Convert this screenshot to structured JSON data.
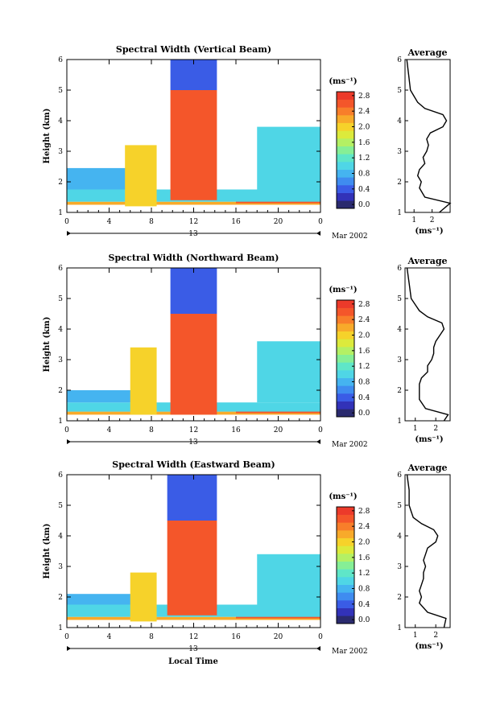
{
  "figure": {
    "xlabel": "Local Time",
    "date_label": "Mar 2002",
    "day_label": "13"
  },
  "colorbar": {
    "unit": "(ms⁻¹)",
    "ticks": [
      "0.0",
      "0.4",
      "0.8",
      "1.2",
      "1.6",
      "2.0",
      "2.4",
      "2.8"
    ],
    "range": [
      0.0,
      3.0
    ],
    "colors": [
      "#2a2a6e",
      "#3232b8",
      "#3a5ce6",
      "#3f8cf0",
      "#45b4f0",
      "#4fd6e6",
      "#5fe6c8",
      "#86ef96",
      "#b4f064",
      "#dcea3c",
      "#f6d22a",
      "#f8aa2a",
      "#f87e2a",
      "#f4562a",
      "#ec3a2a"
    ]
  },
  "panels": [
    {
      "title": "Spectral Width (Vertical Beam)",
      "ylabel": "Height (km)",
      "x_ticks": [
        "0",
        "4",
        "8",
        "12",
        "16",
        "20",
        "0"
      ],
      "y_ticks": [
        "1",
        "2",
        "3",
        "4",
        "5",
        "6"
      ],
      "avg_title": "Average",
      "avg_xlabel": "(ms⁻¹)",
      "avg_x_ticks": [
        "1",
        "2"
      ],
      "avg_xlim": [
        0.5,
        3.0
      ]
    },
    {
      "title": "Spectral Width (Northward Beam)",
      "ylabel": "Height (km)",
      "x_ticks": [
        "0",
        "4",
        "8",
        "12",
        "16",
        "20",
        "0"
      ],
      "y_ticks": [
        "1",
        "2",
        "3",
        "4",
        "5",
        "6"
      ],
      "avg_title": "Average",
      "avg_xlabel": "(ms⁻¹)",
      "avg_x_ticks": [
        "1",
        "2"
      ],
      "avg_xlim": [
        0.5,
        2.7
      ]
    },
    {
      "title": "Spectral Width (Eastward Beam)",
      "ylabel": "Height (km)",
      "x_ticks": [
        "0",
        "4",
        "8",
        "12",
        "16",
        "20",
        "0"
      ],
      "y_ticks": [
        "1",
        "2",
        "3",
        "4",
        "5",
        "6"
      ],
      "avg_title": "Average",
      "avg_xlabel": "(ms⁻¹)",
      "avg_x_ticks": [
        "1",
        "2"
      ],
      "avg_xlim": [
        0.5,
        2.7
      ]
    }
  ],
  "chart_data": [
    {
      "type": "heatmap",
      "title": "Spectral Width (Vertical Beam)",
      "xlabel": "",
      "ylabel": "Height (km)",
      "xlim": [
        0,
        24
      ],
      "ylim": [
        1,
        6
      ],
      "value_range": [
        0.0,
        3.0
      ],
      "regions": [
        {
          "time": [
            0,
            24
          ],
          "height": [
            1.25,
            1.35
          ],
          "value": 2.2
        },
        {
          "time": [
            16,
            24
          ],
          "height": [
            1.3,
            1.45
          ],
          "value": 2.6
        },
        {
          "time": [
            0,
            24
          ],
          "height": [
            1.35,
            1.75
          ],
          "value": 1.0
        },
        {
          "time": [
            0,
            8
          ],
          "height": [
            1.75,
            2.45
          ],
          "value": 0.8
        },
        {
          "time": [
            18,
            24
          ],
          "height": [
            1.75,
            3.8
          ],
          "value": 1.1
        },
        {
          "time": [
            5.5,
            8.5
          ],
          "height": [
            1.2,
            3.2
          ],
          "value": 2.0
        },
        {
          "time": [
            9.8,
            14.2
          ],
          "height": [
            1.4,
            5.0
          ],
          "value": 2.8
        },
        {
          "time": [
            9.8,
            14.2
          ],
          "height": [
            5.0,
            6.0
          ],
          "value": 0.6
        }
      ]
    },
    {
      "type": "line",
      "title": "Average",
      "xlabel": "(ms⁻¹)",
      "ylabel": "",
      "xlim": [
        0.5,
        3.0
      ],
      "ylim": [
        1,
        6
      ],
      "series": [
        {
          "width": [
            2.4,
            3.0,
            1.6,
            1.3,
            1.4,
            1.2,
            1.3,
            1.6,
            1.5,
            1.7,
            1.8,
            1.7,
            1.9,
            2.6,
            2.8,
            2.6,
            1.6,
            1.2,
            1.0,
            0.8,
            0.7,
            0.6
          ],
          "height": [
            1.0,
            1.3,
            1.5,
            1.8,
            2.0,
            2.2,
            2.4,
            2.6,
            2.8,
            3.0,
            3.2,
            3.4,
            3.6,
            3.8,
            4.0,
            4.2,
            4.4,
            4.6,
            4.8,
            5.0,
            5.5,
            6.0
          ]
        }
      ]
    },
    {
      "type": "heatmap",
      "title": "Spectral Width (Northward Beam)",
      "xlabel": "",
      "ylabel": "Height (km)",
      "xlim": [
        0,
        24
      ],
      "ylim": [
        1,
        6
      ],
      "value_range": [
        0.0,
        3.0
      ],
      "regions": [
        {
          "time": [
            0,
            24
          ],
          "height": [
            1.2,
            1.3
          ],
          "value": 2.2
        },
        {
          "time": [
            16,
            24
          ],
          "height": [
            1.25,
            1.45
          ],
          "value": 2.6
        },
        {
          "time": [
            0,
            24
          ],
          "height": [
            1.3,
            1.6
          ],
          "value": 1.0
        },
        {
          "time": [
            0,
            8
          ],
          "height": [
            1.6,
            2.0
          ],
          "value": 0.8
        },
        {
          "time": [
            18,
            24
          ],
          "height": [
            1.6,
            3.6
          ],
          "value": 1.1
        },
        {
          "time": [
            6,
            8.5
          ],
          "height": [
            1.2,
            3.4
          ],
          "value": 2.0
        },
        {
          "time": [
            9.8,
            14.2
          ],
          "height": [
            1.2,
            4.5
          ],
          "value": 2.8
        },
        {
          "time": [
            9.8,
            14.2
          ],
          "height": [
            4.5,
            6.0
          ],
          "value": 0.6
        }
      ]
    },
    {
      "type": "line",
      "title": "Average",
      "xlabel": "(ms⁻¹)",
      "ylabel": "",
      "xlim": [
        0.5,
        2.7
      ],
      "ylim": [
        1,
        6
      ],
      "series": [
        {
          "width": [
            2.4,
            2.6,
            1.5,
            1.2,
            1.2,
            1.2,
            1.3,
            1.6,
            1.6,
            1.8,
            1.9,
            1.9,
            2.0,
            2.2,
            2.4,
            2.3,
            1.6,
            1.2,
            1.0,
            0.8,
            0.7,
            0.6
          ],
          "height": [
            1.0,
            1.2,
            1.4,
            1.7,
            2.0,
            2.2,
            2.4,
            2.6,
            2.8,
            3.0,
            3.2,
            3.4,
            3.6,
            3.8,
            4.0,
            4.2,
            4.4,
            4.6,
            4.8,
            5.0,
            5.5,
            6.0
          ]
        }
      ]
    },
    {
      "type": "heatmap",
      "title": "Spectral Width (Eastward Beam)",
      "xlabel": "Local Time",
      "ylabel": "Height (km)",
      "xlim": [
        0,
        24
      ],
      "ylim": [
        1,
        6
      ],
      "value_range": [
        0.0,
        3.0
      ],
      "regions": [
        {
          "time": [
            0,
            24
          ],
          "height": [
            1.25,
            1.35
          ],
          "value": 2.2
        },
        {
          "time": [
            16,
            24
          ],
          "height": [
            1.3,
            1.45
          ],
          "value": 2.6
        },
        {
          "time": [
            0,
            24
          ],
          "height": [
            1.35,
            1.75
          ],
          "value": 1.0
        },
        {
          "time": [
            0,
            8
          ],
          "height": [
            1.75,
            2.1
          ],
          "value": 0.8
        },
        {
          "time": [
            18,
            24
          ],
          "height": [
            1.75,
            3.4
          ],
          "value": 1.1
        },
        {
          "time": [
            6,
            8.5
          ],
          "height": [
            1.2,
            2.8
          ],
          "value": 2.0
        },
        {
          "time": [
            9.5,
            14.2
          ],
          "height": [
            1.4,
            4.5
          ],
          "value": 2.8
        },
        {
          "time": [
            9.5,
            14.2
          ],
          "height": [
            4.5,
            6.0
          ],
          "value": 0.6
        }
      ]
    },
    {
      "type": "line",
      "title": "Average",
      "xlabel": "(ms⁻¹)",
      "ylabel": "",
      "xlim": [
        0.5,
        2.7
      ],
      "ylim": [
        1,
        6
      ],
      "series": [
        {
          "width": [
            2.4,
            2.5,
            1.6,
            1.2,
            1.3,
            1.2,
            1.3,
            1.4,
            1.4,
            1.5,
            1.4,
            1.5,
            1.6,
            2.0,
            2.1,
            1.9,
            1.3,
            0.9,
            0.8,
            0.7,
            0.7,
            0.6
          ],
          "height": [
            1.0,
            1.3,
            1.5,
            1.8,
            2.0,
            2.2,
            2.4,
            2.6,
            2.8,
            3.0,
            3.2,
            3.4,
            3.6,
            3.8,
            4.0,
            4.2,
            4.4,
            4.6,
            4.8,
            5.0,
            5.5,
            6.0
          ]
        }
      ]
    }
  ]
}
